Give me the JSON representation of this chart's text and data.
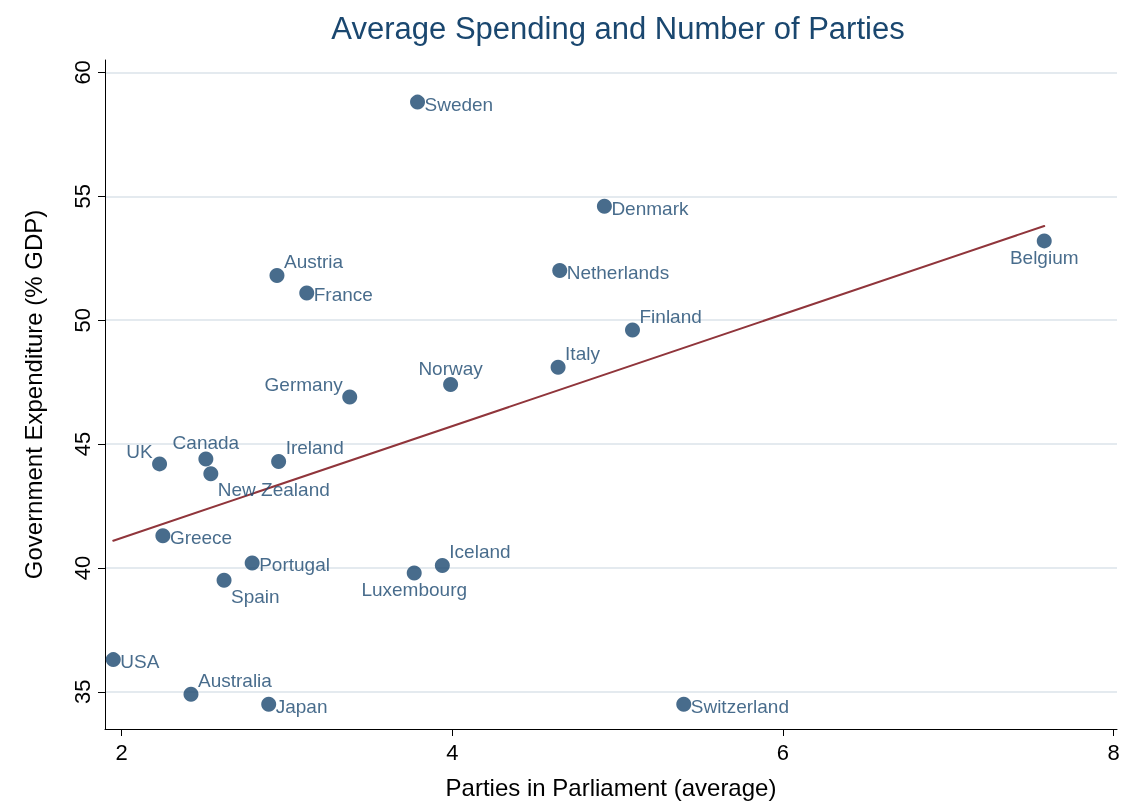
{
  "chart_data": {
    "type": "scatter",
    "title": "Average Spending and Number of Parties",
    "xlabel": "Parties in Parliament (average)",
    "ylabel": "Government Expenditure (% GDP)",
    "xlim": [
      1.9,
      8.02
    ],
    "xticks": [
      2,
      4,
      6,
      8
    ],
    "ylim": [
      33.5,
      60.5
    ],
    "yticks": [
      35,
      40,
      45,
      50,
      55,
      60
    ],
    "grid": "y",
    "marker": "circle",
    "series": [
      {
        "type": "scatter",
        "color": "#1a476f",
        "x": [
          3.79,
          4.92,
          7.58,
          4.65,
          2.94,
          3.12,
          5.09,
          4.64,
          3.99,
          3.38,
          2.51,
          2.95,
          2.23,
          2.54,
          2.25,
          2.79,
          3.94,
          3.77,
          2.62,
          1.95,
          2.42,
          2.89,
          5.4
        ],
        "values": [
          58.8,
          54.6,
          53.2,
          52.0,
          51.8,
          51.1,
          49.6,
          48.1,
          47.4,
          46.9,
          44.4,
          44.3,
          44.2,
          43.8,
          41.3,
          40.2,
          40.1,
          39.8,
          39.5,
          36.3,
          34.9,
          34.5,
          34.5
        ]
      },
      {
        "type": "line",
        "color": "#90353b",
        "x": [
          1.95,
          7.58
        ],
        "values": [
          41.1,
          53.8
        ],
        "marker": "none"
      }
    ],
    "annotations": [
      {
        "text": "Sweden",
        "x": 3.79,
        "y": 58.8
      },
      {
        "text": "Denmark",
        "x": 4.92,
        "y": 54.6
      },
      {
        "text": "Belgium",
        "x": 7.58,
        "y": 53.2
      },
      {
        "text": "Netherlands",
        "x": 4.65,
        "y": 52.0
      },
      {
        "text": "Austria",
        "x": 2.94,
        "y": 51.8
      },
      {
        "text": "France",
        "x": 3.12,
        "y": 51.1
      },
      {
        "text": "Finland",
        "x": 5.09,
        "y": 49.6
      },
      {
        "text": "Italy",
        "x": 4.64,
        "y": 48.1
      },
      {
        "text": "Norway",
        "x": 3.99,
        "y": 47.4
      },
      {
        "text": "Germany",
        "x": 3.38,
        "y": 46.9
      },
      {
        "text": "Canada",
        "x": 2.51,
        "y": 44.4
      },
      {
        "text": "Ireland",
        "x": 2.95,
        "y": 44.3
      },
      {
        "text": "UK",
        "x": 2.23,
        "y": 44.2
      },
      {
        "text": "New Zealand",
        "x": 2.54,
        "y": 43.8
      },
      {
        "text": "Greece",
        "x": 2.25,
        "y": 41.3
      },
      {
        "text": "Portugal",
        "x": 2.79,
        "y": 40.2
      },
      {
        "text": "Iceland",
        "x": 3.94,
        "y": 40.1
      },
      {
        "text": "Luxembourg",
        "x": 3.77,
        "y": 39.8
      },
      {
        "text": "Spain",
        "x": 2.62,
        "y": 39.5
      },
      {
        "text": "USA",
        "x": 1.95,
        "y": 36.3
      },
      {
        "text": "Australia",
        "x": 2.42,
        "y": 34.9
      },
      {
        "text": "Japan",
        "x": 2.89,
        "y": 34.5
      },
      {
        "text": "Switzerland",
        "x": 5.4,
        "y": 34.5
      }
    ]
  }
}
